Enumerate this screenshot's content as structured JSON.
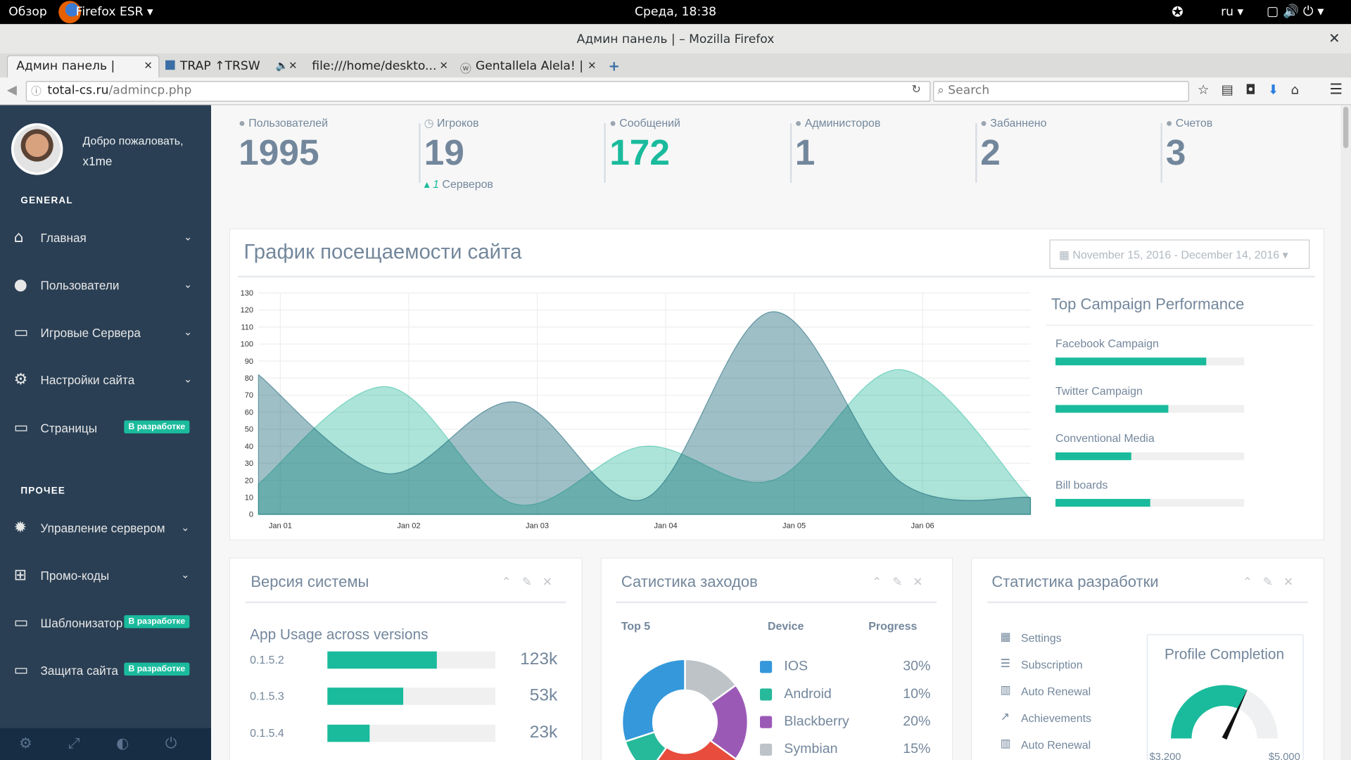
{
  "os_bar": {
    "activities": "Обзор",
    "app": "Firefox ESR",
    "clock": "Среда, 18:38",
    "lang": "ru"
  },
  "window": {
    "title": "Админ панель | – Mozilla Firefox"
  },
  "tabs": [
    "Админ панель |",
    "TRAP ↑TRSW",
    "file:///home/deskto...",
    "Gentallela Alela! |"
  ],
  "url": {
    "host": "total-cs.ru",
    "path": "/admincp.php"
  },
  "search": "Search",
  "sidebar": {
    "welcome": "Добро пожаловать,",
    "user": "x1me",
    "sections": [
      {
        "title": "GENERAL",
        "items": [
          {
            "label": "Главная"
          },
          {
            "label": "Пользователи"
          },
          {
            "label": "Игровые Сервера"
          },
          {
            "label": "Настройки сайта"
          },
          {
            "label": "Страницы",
            "badge": "В разработке"
          }
        ]
      },
      {
        "title": "ПРОЧЕЕ",
        "items": [
          {
            "label": "Управление сервером"
          },
          {
            "label": "Промо-коды"
          },
          {
            "label": "Шаблонизатор",
            "badge": "В разработке"
          },
          {
            "label": "Защита сайта",
            "badge": "В разработке"
          }
        ]
      }
    ]
  },
  "stats": [
    {
      "label": "Пользователей",
      "value": 1995
    },
    {
      "label": "Игроков",
      "value": 19,
      "sub_value": 1,
      "sub_label": "Серверов"
    },
    {
      "label": "Сообщений",
      "value": 172
    },
    {
      "label": "Администоров",
      "value": 1
    },
    {
      "label": "Забаннено",
      "value": 2
    },
    {
      "label": "Счетов",
      "value": 3
    }
  ],
  "traffic": {
    "title": "График посещаемости сайта",
    "date_range": "November 15, 2016 - December 14, 2016"
  },
  "chart_data": {
    "type": "area",
    "x": [
      0.83,
      1.83,
      2.83,
      3.83,
      4.83,
      5.83,
      6.84
    ],
    "series": [
      {
        "color": "#26B99A",
        "values": [
          18,
          75,
          6,
          40,
          20,
          85,
          9
        ]
      },
      {
        "color": "#03586A",
        "values": [
          82,
          24,
          66,
          9,
          119,
          19,
          10
        ]
      }
    ],
    "xlim": [
      0.83,
      6.84
    ],
    "xticks": [
      {
        "value": 1,
        "label": "Jan 01"
      },
      {
        "value": 2,
        "label": "Jan 02"
      },
      {
        "value": 3,
        "label": "Jan 03"
      },
      {
        "value": 4,
        "label": "Jan 04"
      },
      {
        "value": 5,
        "label": "Jan 05"
      },
      {
        "value": 6,
        "label": "Jan 06"
      }
    ],
    "ylim": [
      0,
      130
    ],
    "yticks": [
      0,
      10,
      20,
      30,
      40,
      50,
      60,
      70,
      80,
      90,
      100,
      110,
      120,
      130
    ],
    "grid": true
  },
  "campaigns": {
    "title": "Top Campaign Performance",
    "items": [
      {
        "name": "Facebook Campaign",
        "value": 80
      },
      {
        "name": "Twitter Campaign",
        "value": 60
      },
      {
        "name": "Conventional Media",
        "value": 40
      },
      {
        "name": "Bill boards",
        "value": 50
      }
    ]
  },
  "versions": {
    "title": "Версия системы",
    "subtitle": "App Usage across versions",
    "rows": [
      {
        "version": "0.1.5.2",
        "value": "123k",
        "progress": 65
      },
      {
        "version": "0.1.5.3",
        "value": "53k",
        "progress": 45
      },
      {
        "version": "0.1.5.4",
        "value": "23k",
        "progress": 25
      }
    ]
  },
  "sessions": {
    "title": "Сатистика заходов",
    "headers": [
      "Top 5",
      "Device",
      "Progress"
    ],
    "devices": [
      {
        "name": "IOS",
        "color": "#3498DB",
        "value": 30,
        "value_label": "30%"
      },
      {
        "name": "Android",
        "color": "#26B99A",
        "value": 10,
        "value_label": "10%"
      },
      {
        "name": "Blackberry",
        "color": "#9B59B6",
        "value": 20,
        "value_label": "20%"
      },
      {
        "name": "Symbian",
        "color": "#BDC3C7",
        "value": 15,
        "value_label": "15%"
      }
    ]
  },
  "development": {
    "title": "Статистика разработки",
    "items": [
      "Settings",
      "Subscription",
      "Auto Renewal",
      "Achievements",
      "Auto Renewal"
    ],
    "gauge": {
      "title": "Profile Completion",
      "value": 3200,
      "label": "$3,200",
      "max": 5000,
      "max_label": "$5,000"
    }
  }
}
